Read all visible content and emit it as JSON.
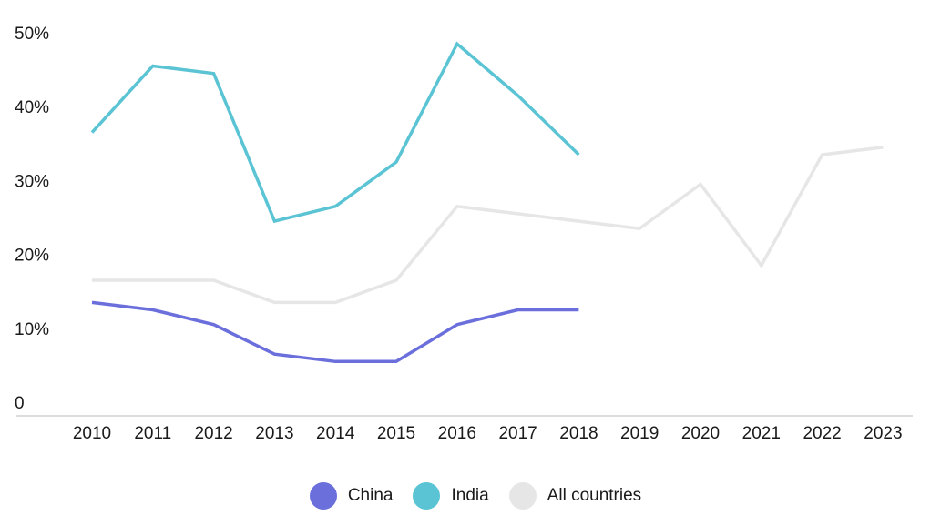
{
  "chart_data": {
    "type": "line",
    "categories": [
      "2010",
      "2011",
      "2012",
      "2013",
      "2014",
      "2015",
      "2016",
      "2017",
      "2018",
      "2019",
      "2020",
      "2021",
      "2022",
      "2023"
    ],
    "y_ticks": [
      "0",
      "10%",
      "20%",
      "30%",
      "40%",
      "50%"
    ],
    "ylim": [
      0,
      50
    ],
    "grid": false,
    "legend_position": "bottom",
    "series": [
      {
        "name": "China",
        "color": "#6b6fdc",
        "values": [
          13.5,
          12.5,
          10.5,
          6.5,
          5.5,
          5.5,
          10.5,
          12.5,
          12.5,
          null,
          null,
          null,
          null,
          null
        ]
      },
      {
        "name": "India",
        "color": "#5bc4d4",
        "values": [
          36.5,
          45.5,
          44.5,
          24.5,
          26.5,
          32.5,
          48.5,
          41.5,
          33.5,
          null,
          null,
          null,
          null,
          null
        ]
      },
      {
        "name": "All countries",
        "color": "#e6e6e6",
        "values": [
          16.5,
          16.5,
          16.5,
          13.5,
          13.5,
          16.5,
          26.5,
          25.5,
          24.5,
          23.5,
          29.5,
          18.5,
          33.5,
          34.5
        ]
      }
    ]
  }
}
